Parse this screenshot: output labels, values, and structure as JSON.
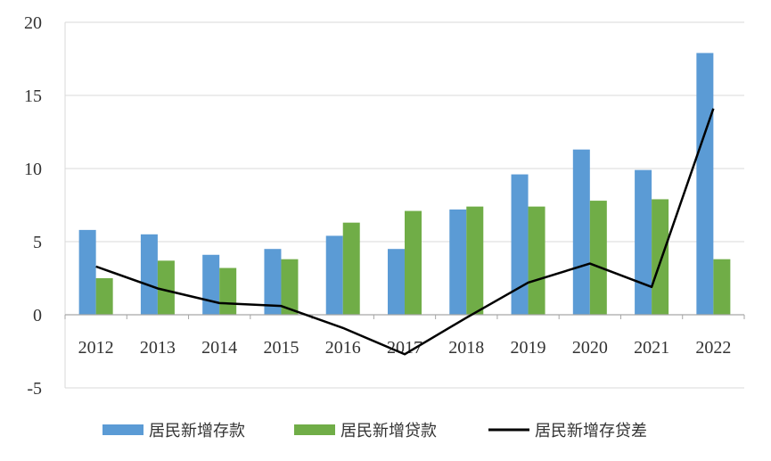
{
  "chart_data": {
    "type": "bar",
    "categories": [
      "2012",
      "2013",
      "2014",
      "2015",
      "2016",
      "2017",
      "2018",
      "2019",
      "2020",
      "2021",
      "2022"
    ],
    "series": [
      {
        "name": "居民新增存款",
        "kind": "bar",
        "color": "#5B9BD5",
        "values": [
          5.8,
          5.5,
          4.1,
          4.5,
          5.4,
          4.5,
          7.2,
          9.6,
          11.3,
          9.9,
          17.9
        ]
      },
      {
        "name": "居民新增贷款",
        "kind": "bar",
        "color": "#70AD47",
        "values": [
          2.5,
          3.7,
          3.2,
          3.8,
          6.3,
          7.1,
          7.4,
          7.4,
          7.8,
          7.9,
          3.8
        ]
      },
      {
        "name": "居民新增存贷差",
        "kind": "line",
        "color": "#000000",
        "values": [
          3.3,
          1.8,
          0.8,
          0.6,
          -0.9,
          -2.7,
          -0.2,
          2.2,
          3.5,
          1.9,
          14.1
        ]
      }
    ],
    "ylim": [
      -5,
      20
    ],
    "yticks": [
      -5,
      0,
      5,
      10,
      15,
      20
    ],
    "grid": true,
    "legend": "bottom",
    "title": "",
    "xlabel": "",
    "ylabel": ""
  }
}
